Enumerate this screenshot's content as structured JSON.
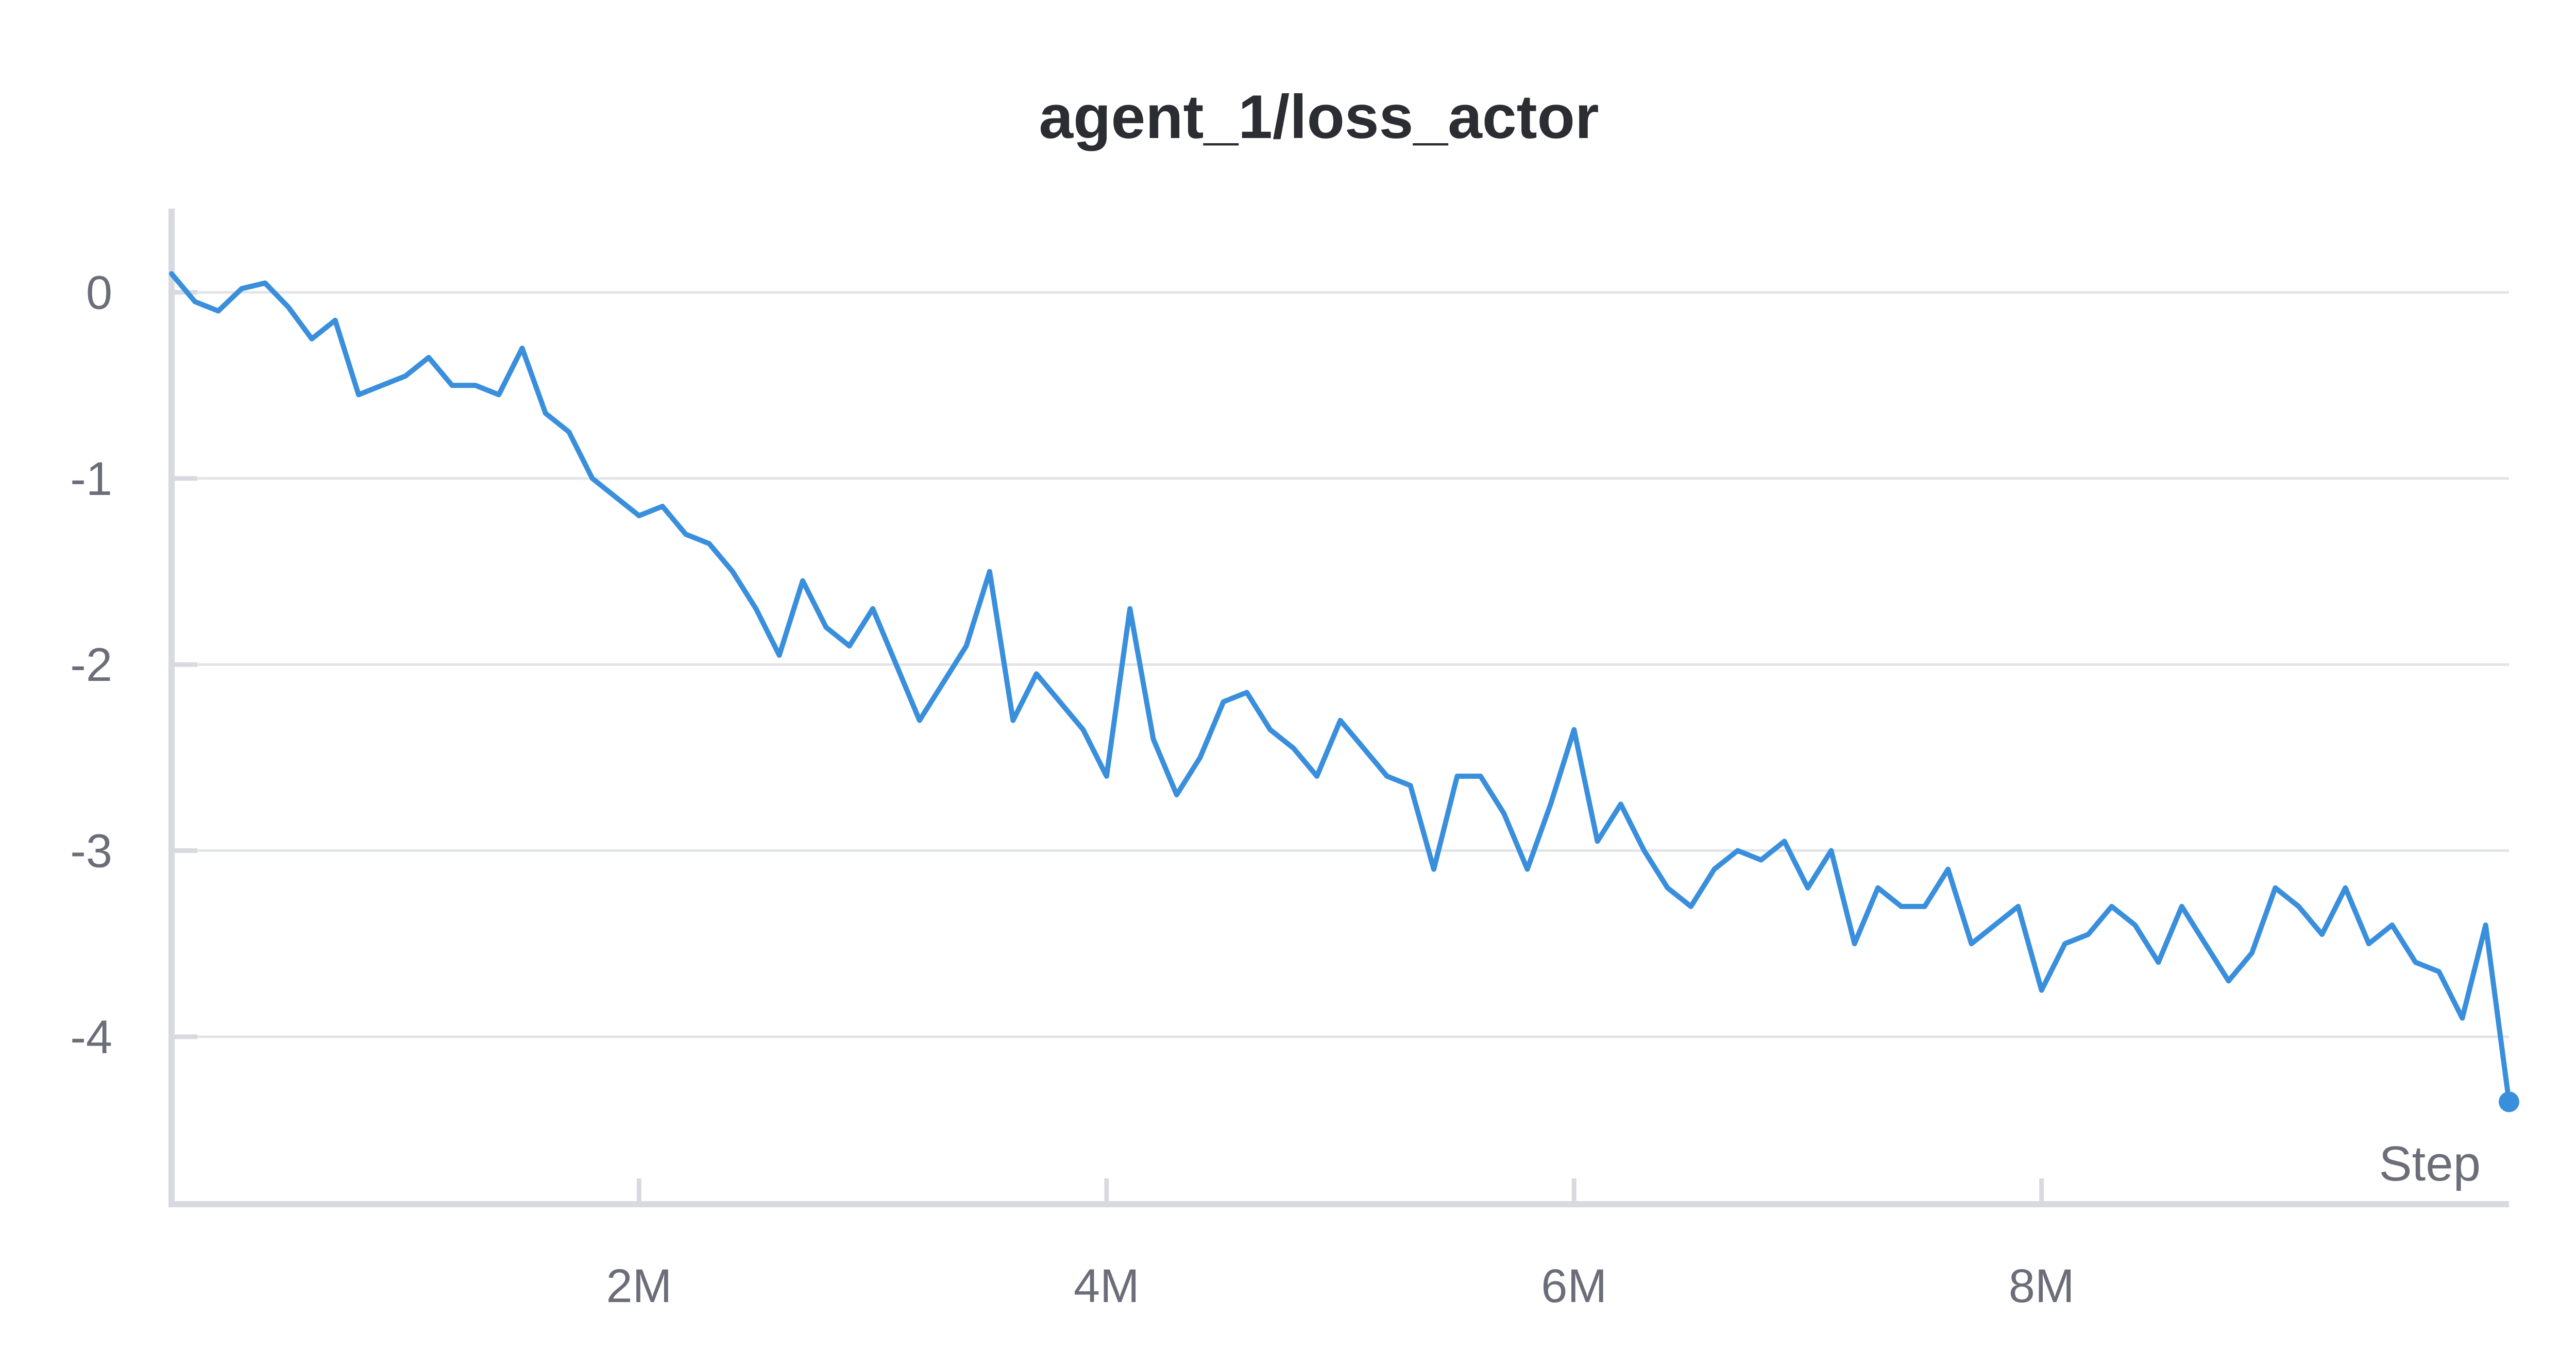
{
  "chart_data": {
    "type": "line",
    "title": "agent_1/loss_actor",
    "xlabel": "Step",
    "ylabel": "",
    "xlim": [
      0,
      10000000
    ],
    "ylim": [
      -4.9,
      0.45
    ],
    "grid": true,
    "x_ticks": [
      {
        "value": 2000000,
        "label": "2M"
      },
      {
        "value": 4000000,
        "label": "4M"
      },
      {
        "value": 6000000,
        "label": "6M"
      },
      {
        "value": 8000000,
        "label": "8M"
      }
    ],
    "y_ticks": [
      {
        "value": 0,
        "label": "0"
      },
      {
        "value": -1,
        "label": "-1"
      },
      {
        "value": -2,
        "label": "-2"
      },
      {
        "value": -3,
        "label": "-3"
      },
      {
        "value": -4,
        "label": "-4"
      }
    ],
    "series": [
      {
        "name": "",
        "color": "#3a8fdd",
        "x": [
          0,
          100000,
          200000,
          300000,
          400000,
          500000,
          600000,
          700000,
          800000,
          900000,
          1000000,
          1100000,
          1200000,
          1300000,
          1400000,
          1500000,
          1600000,
          1700000,
          1800000,
          1900000,
          2000000,
          2100000,
          2200000,
          2300000,
          2400000,
          2500000,
          2600000,
          2700000,
          2800000,
          2900000,
          3000000,
          3100000,
          3200000,
          3300000,
          3400000,
          3500000,
          3600000,
          3700000,
          3800000,
          3900000,
          4000000,
          4100000,
          4200000,
          4300000,
          4400000,
          4500000,
          4600000,
          4700000,
          4800000,
          4900000,
          5000000,
          5100000,
          5200000,
          5300000,
          5400000,
          5500000,
          5600000,
          5700000,
          5800000,
          5900000,
          6000000,
          6100000,
          6200000,
          6300000,
          6400000,
          6500000,
          6600000,
          6700000,
          6800000,
          6900000,
          7000000,
          7100000,
          7200000,
          7300000,
          7400000,
          7500000,
          7600000,
          7700000,
          7800000,
          7900000,
          8000000,
          8100000,
          8200000,
          8300000,
          8400000,
          8500000,
          8600000,
          8700000,
          8800000,
          8900000,
          9000000,
          9100000,
          9200000,
          9300000,
          9400000,
          9500000,
          9600000,
          9700000,
          9800000,
          9900000,
          10000000
        ],
        "y": [
          0.1,
          -0.05,
          -0.1,
          0.02,
          0.05,
          -0.08,
          -0.25,
          -0.15,
          -0.55,
          -0.5,
          -0.45,
          -0.35,
          -0.5,
          -0.5,
          -0.55,
          -0.3,
          -0.65,
          -0.75,
          -1.0,
          -1.1,
          -1.2,
          -1.15,
          -1.3,
          -1.35,
          -1.5,
          -1.7,
          -1.95,
          -1.55,
          -1.8,
          -1.9,
          -1.7,
          -2.0,
          -2.3,
          -2.1,
          -1.9,
          -1.5,
          -2.3,
          -2.05,
          -2.2,
          -2.35,
          -2.6,
          -1.7,
          -2.4,
          -2.7,
          -2.5,
          -2.2,
          -2.15,
          -2.35,
          -2.45,
          -2.6,
          -2.3,
          -2.45,
          -2.6,
          -2.65,
          -3.1,
          -2.6,
          -2.6,
          -2.8,
          -3.1,
          -2.75,
          -2.35,
          -2.95,
          -2.75,
          -3.0,
          -3.2,
          -3.3,
          -3.1,
          -3.0,
          -3.05,
          -2.95,
          -3.2,
          -3.0,
          -3.5,
          -3.2,
          -3.3,
          -3.3,
          -3.1,
          -3.5,
          -3.4,
          -3.3,
          -3.75,
          -3.5,
          -3.45,
          -3.3,
          -3.4,
          -3.6,
          -3.3,
          -3.5,
          -3.7,
          -3.55,
          -3.2,
          -3.3,
          -3.45,
          -3.2,
          -3.5,
          -3.4,
          -3.6,
          -3.65,
          -3.9,
          -3.4,
          -4.35
        ]
      }
    ],
    "end_marker": {
      "x": 10000000,
      "y": -4.35
    }
  }
}
